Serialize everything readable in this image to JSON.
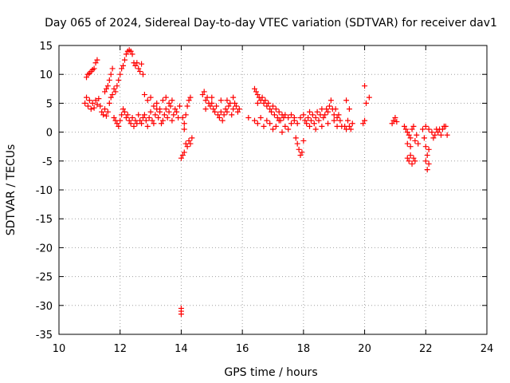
{
  "chart_data": {
    "type": "scatter",
    "title": "Day 065 of 2024, Sidereal Day-to-day VTEC variation (SDTVAR) for receiver dav1",
    "xlabel": "GPS time / hours",
    "ylabel": "SDTVAR / TECUs",
    "xlim": [
      10,
      24
    ],
    "ylim": [
      -35,
      15
    ],
    "x_ticks": [
      "10",
      "12",
      "14",
      "16",
      "18",
      "20",
      "22",
      "24"
    ],
    "y_ticks": [
      "15",
      "10",
      "5",
      "0",
      "-5",
      "-10",
      "-15",
      "-20",
      "-25",
      "-30",
      "-35"
    ],
    "grid": true,
    "marker": "+",
    "marker_color": "#ff0000",
    "series": [
      {
        "name": "dav1",
        "points": [
          [
            10.85,
            5.0
          ],
          [
            10.9,
            6.0
          ],
          [
            10.95,
            4.5
          ],
          [
            11.0,
            5.5
          ],
          [
            11.05,
            4.0
          ],
          [
            11.1,
            5.0
          ],
          [
            11.15,
            4.2
          ],
          [
            11.2,
            5.5
          ],
          [
            11.25,
            4.8
          ],
          [
            11.3,
            5.8
          ],
          [
            10.9,
            9.5
          ],
          [
            10.95,
            10.0
          ],
          [
            11.0,
            10.2
          ],
          [
            11.05,
            10.5
          ],
          [
            11.1,
            10.8
          ],
          [
            11.15,
            11.0
          ],
          [
            11.2,
            12.0
          ],
          [
            11.25,
            12.5
          ],
          [
            11.35,
            4.5
          ],
          [
            11.4,
            3.5
          ],
          [
            11.45,
            3.0
          ],
          [
            11.5,
            4.0
          ],
          [
            11.55,
            2.8
          ],
          [
            11.6,
            3.5
          ],
          [
            11.65,
            5.0
          ],
          [
            11.7,
            6.0
          ],
          [
            11.75,
            6.5
          ],
          [
            11.5,
            7.0
          ],
          [
            11.55,
            7.5
          ],
          [
            11.6,
            8.0
          ],
          [
            11.65,
            9.0
          ],
          [
            11.7,
            10.0
          ],
          [
            11.75,
            11.0
          ],
          [
            11.8,
            7.5
          ],
          [
            11.85,
            7.0
          ],
          [
            11.9,
            8.0
          ],
          [
            11.95,
            9.0
          ],
          [
            12.0,
            10.0
          ],
          [
            12.05,
            11.0
          ],
          [
            12.1,
            11.5
          ],
          [
            12.15,
            12.5
          ],
          [
            12.2,
            13.5
          ],
          [
            12.25,
            14.0
          ],
          [
            12.3,
            14.2
          ],
          [
            12.35,
            14.0
          ],
          [
            12.4,
            13.5
          ],
          [
            12.45,
            12.0
          ],
          [
            12.5,
            11.5
          ],
          [
            12.55,
            12.0
          ],
          [
            12.6,
            11.0
          ],
          [
            12.65,
            10.5
          ],
          [
            12.7,
            11.8
          ],
          [
            12.75,
            10.0
          ],
          [
            11.8,
            2.5
          ],
          [
            11.85,
            2.0
          ],
          [
            11.9,
            1.5
          ],
          [
            11.95,
            1.0
          ],
          [
            12.0,
            2.0
          ],
          [
            12.05,
            3.0
          ],
          [
            12.1,
            4.0
          ],
          [
            12.15,
            3.5
          ],
          [
            12.2,
            2.5
          ],
          [
            12.25,
            3.0
          ],
          [
            12.3,
            2.0
          ],
          [
            12.35,
            1.5
          ],
          [
            12.4,
            2.5
          ],
          [
            12.45,
            1.0
          ],
          [
            12.5,
            2.0
          ],
          [
            12.55,
            1.5
          ],
          [
            12.6,
            3.0
          ],
          [
            12.65,
            2.0
          ],
          [
            12.7,
            1.5
          ],
          [
            12.75,
            2.5
          ],
          [
            12.8,
            3.0
          ],
          [
            12.85,
            2.0
          ],
          [
            12.9,
            1.0
          ],
          [
            12.95,
            2.5
          ],
          [
            13.0,
            3.5
          ],
          [
            13.05,
            2.0
          ],
          [
            13.1,
            1.5
          ],
          [
            13.15,
            3.0
          ],
          [
            13.2,
            4.0
          ],
          [
            13.25,
            2.5
          ],
          [
            13.3,
            3.5
          ],
          [
            13.35,
            1.5
          ],
          [
            13.4,
            2.0
          ],
          [
            13.45,
            3.0
          ],
          [
            13.5,
            4.0
          ],
          [
            13.55,
            2.5
          ],
          [
            13.6,
            3.5
          ],
          [
            13.65,
            4.5
          ],
          [
            13.7,
            2.0
          ],
          [
            13.75,
            3.0
          ],
          [
            13.8,
            4.0
          ],
          [
            13.85,
            3.5
          ],
          [
            13.9,
            2.5
          ],
          [
            13.95,
            4.5
          ],
          [
            12.8,
            6.5
          ],
          [
            12.9,
            5.5
          ],
          [
            13.0,
            6.0
          ],
          [
            13.1,
            4.5
          ],
          [
            13.2,
            5.0
          ],
          [
            13.3,
            4.0
          ],
          [
            13.4,
            5.5
          ],
          [
            13.5,
            6.0
          ],
          [
            13.6,
            5.0
          ],
          [
            13.7,
            5.5
          ],
          [
            14.0,
            -4.5
          ],
          [
            14.05,
            -4.0
          ],
          [
            14.1,
            -3.5
          ],
          [
            14.15,
            -2.0
          ],
          [
            14.2,
            -2.5
          ],
          [
            14.25,
            -1.5
          ],
          [
            14.3,
            -2.0
          ],
          [
            14.35,
            -1.0
          ],
          [
            14.05,
            2.5
          ],
          [
            14.1,
            1.5
          ],
          [
            14.15,
            3.0
          ],
          [
            14.2,
            4.5
          ],
          [
            14.25,
            5.5
          ],
          [
            14.3,
            6.0
          ],
          [
            14.1,
            0.5
          ],
          [
            14.0,
            -30.5
          ],
          [
            14.0,
            -31.0
          ],
          [
            14.0,
            -31.5
          ],
          [
            14.7,
            6.5
          ],
          [
            14.75,
            7.0
          ],
          [
            14.8,
            5.5
          ],
          [
            14.85,
            6.0
          ],
          [
            14.9,
            5.0
          ],
          [
            14.95,
            4.5
          ],
          [
            15.0,
            5.0
          ],
          [
            15.05,
            4.0
          ],
          [
            15.1,
            3.5
          ],
          [
            15.15,
            4.5
          ],
          [
            15.2,
            3.0
          ],
          [
            15.25,
            2.5
          ],
          [
            15.3,
            3.5
          ],
          [
            15.35,
            2.0
          ],
          [
            15.4,
            3.0
          ],
          [
            15.45,
            4.0
          ],
          [
            15.5,
            3.5
          ],
          [
            15.55,
            4.5
          ],
          [
            15.6,
            5.0
          ],
          [
            15.65,
            3.0
          ],
          [
            15.7,
            4.0
          ],
          [
            15.75,
            5.0
          ],
          [
            15.8,
            4.5
          ],
          [
            15.85,
            3.5
          ],
          [
            15.9,
            4.0
          ],
          [
            14.8,
            4.0
          ],
          [
            15.0,
            6.0
          ],
          [
            15.3,
            5.5
          ],
          [
            15.5,
            5.5
          ],
          [
            15.7,
            6.0
          ],
          [
            16.2,
            2.5
          ],
          [
            16.5,
            5.0
          ],
          [
            16.4,
            7.5
          ],
          [
            16.45,
            7.0
          ],
          [
            16.5,
            6.5
          ],
          [
            16.55,
            6.0
          ],
          [
            16.6,
            5.5
          ],
          [
            16.65,
            6.0
          ],
          [
            16.7,
            5.0
          ],
          [
            16.75,
            5.5
          ],
          [
            16.8,
            4.5
          ],
          [
            16.85,
            5.0
          ],
          [
            16.9,
            4.0
          ],
          [
            16.95,
            3.5
          ],
          [
            17.0,
            4.5
          ],
          [
            17.05,
            3.0
          ],
          [
            17.1,
            4.0
          ],
          [
            17.15,
            2.5
          ],
          [
            17.2,
            3.5
          ],
          [
            17.25,
            2.0
          ],
          [
            17.3,
            3.0
          ],
          [
            17.35,
            2.5
          ],
          [
            16.4,
            2.0
          ],
          [
            16.5,
            1.5
          ],
          [
            16.6,
            2.5
          ],
          [
            16.7,
            1.0
          ],
          [
            16.8,
            2.0
          ],
          [
            16.9,
            1.5
          ],
          [
            17.0,
            0.5
          ],
          [
            17.1,
            1.0
          ],
          [
            17.2,
            2.0
          ],
          [
            17.3,
            0.0
          ],
          [
            17.4,
            1.0
          ],
          [
            17.5,
            0.5
          ],
          [
            17.6,
            1.5
          ],
          [
            17.7,
            2.0
          ],
          [
            17.75,
            -1.0
          ],
          [
            17.8,
            -2.0
          ],
          [
            17.85,
            -3.0
          ],
          [
            17.9,
            -4.0
          ],
          [
            17.95,
            -3.5
          ],
          [
            18.0,
            -1.5
          ],
          [
            17.4,
            3.0
          ],
          [
            17.5,
            2.5
          ],
          [
            17.6,
            3.0
          ],
          [
            17.7,
            2.5
          ],
          [
            17.8,
            1.5
          ],
          [
            17.9,
            2.5
          ],
          [
            18.0,
            3.0
          ],
          [
            18.05,
            2.0
          ],
          [
            18.1,
            1.5
          ],
          [
            18.15,
            2.5
          ],
          [
            18.2,
            3.5
          ],
          [
            18.25,
            2.0
          ],
          [
            18.3,
            3.0
          ],
          [
            18.35,
            1.5
          ],
          [
            18.4,
            2.5
          ],
          [
            18.45,
            3.5
          ],
          [
            18.5,
            2.0
          ],
          [
            18.55,
            3.0
          ],
          [
            18.6,
            4.0
          ],
          [
            18.65,
            2.5
          ],
          [
            18.7,
            3.0
          ],
          [
            18.75,
            4.0
          ],
          [
            18.8,
            3.5
          ],
          [
            18.85,
            4.5
          ],
          [
            18.9,
            5.5
          ],
          [
            18.95,
            4.0
          ],
          [
            19.0,
            3.0
          ],
          [
            19.05,
            4.0
          ],
          [
            19.1,
            2.5
          ],
          [
            19.15,
            3.0
          ],
          [
            18.2,
            1.0
          ],
          [
            18.4,
            0.5
          ],
          [
            18.6,
            1.0
          ],
          [
            18.8,
            1.5
          ],
          [
            19.0,
            2.0
          ],
          [
            19.1,
            1.0
          ],
          [
            19.2,
            2.0
          ],
          [
            19.25,
            1.0
          ],
          [
            19.35,
            1.0
          ],
          [
            19.4,
            0.5
          ],
          [
            19.45,
            2.0
          ],
          [
            19.5,
            1.0
          ],
          [
            19.55,
            0.5
          ],
          [
            19.6,
            1.5
          ],
          [
            19.4,
            5.5
          ],
          [
            19.5,
            4.0
          ],
          [
            20.0,
            8.0
          ],
          [
            20.05,
            5.0
          ],
          [
            20.15,
            6.0
          ],
          [
            20.0,
            2.0
          ],
          [
            19.95,
            1.5
          ],
          [
            20.9,
            1.5
          ],
          [
            20.95,
            2.0
          ],
          [
            21.0,
            2.5
          ],
          [
            21.05,
            1.8
          ],
          [
            21.3,
            1.0
          ],
          [
            21.35,
            0.5
          ],
          [
            21.4,
            0.0
          ],
          [
            21.45,
            -0.5
          ],
          [
            21.5,
            -1.0
          ],
          [
            21.55,
            0.5
          ],
          [
            21.6,
            1.0
          ],
          [
            21.65,
            -1.5
          ],
          [
            21.7,
            -0.5
          ],
          [
            21.75,
            -2.0
          ],
          [
            21.4,
            -4.5
          ],
          [
            21.45,
            -5.0
          ],
          [
            21.5,
            -4.0
          ],
          [
            21.55,
            -5.5
          ],
          [
            21.6,
            -4.5
          ],
          [
            21.65,
            -5.0
          ],
          [
            21.4,
            -2.0
          ],
          [
            21.5,
            -2.5
          ],
          [
            21.9,
            0.5
          ],
          [
            21.95,
            -1.0
          ],
          [
            22.0,
            -2.5
          ],
          [
            22.05,
            -4.0
          ],
          [
            22.1,
            -5.5
          ],
          [
            22.05,
            -6.5
          ],
          [
            22.0,
            -5.0
          ],
          [
            22.1,
            -3.0
          ],
          [
            22.0,
            1.0
          ],
          [
            22.1,
            0.5
          ],
          [
            22.2,
            0.0
          ],
          [
            22.25,
            -1.0
          ],
          [
            22.3,
            -0.5
          ],
          [
            22.35,
            0.5
          ],
          [
            22.4,
            0.0
          ],
          [
            22.45,
            0.5
          ],
          [
            22.5,
            -0.5
          ],
          [
            22.55,
            0.5
          ],
          [
            22.6,
            1.0
          ],
          [
            22.65,
            1.0
          ],
          [
            22.7,
            -0.5
          ]
        ]
      }
    ]
  }
}
